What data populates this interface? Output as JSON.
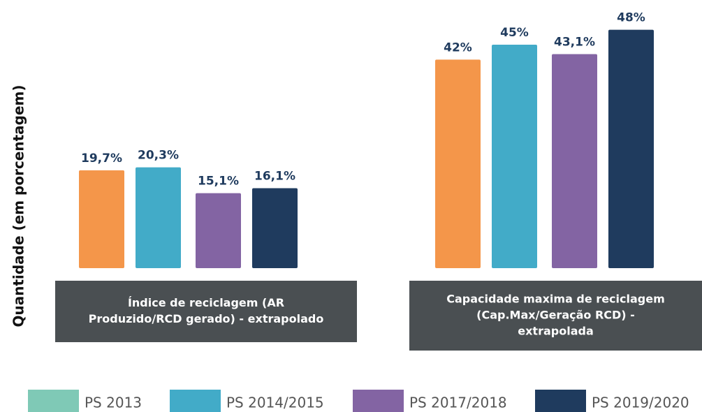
{
  "chart_data": {
    "type": "bar",
    "y_label": "Quantidade (em porcentagem)",
    "categories": [
      [
        "Índice de reciclagem (AR",
        "Produzido/RCD gerado) - extrapolado"
      ],
      [
        "Capacidade maxima de reciclagem",
        "(Cap.Max/Geração RCD) -",
        "extrapolada"
      ]
    ],
    "series": [
      {
        "name": "PS 2013",
        "color": "#f4964a",
        "legend_color": "#7fc9b6",
        "values": [
          19.7,
          42
        ],
        "value_labels": [
          "19,7%",
          "42%"
        ]
      },
      {
        "name": "PS 2014/2015",
        "color": "#42abc8",
        "legend_color": "#42abc8",
        "values": [
          20.3,
          45
        ],
        "value_labels": [
          "20,3%",
          "45%"
        ]
      },
      {
        "name": "PS 2017/2018",
        "color": "#8364a3",
        "legend_color": "#8364a3",
        "values": [
          15.1,
          43.1
        ],
        "value_labels": [
          "15,1%",
          "43,1%"
        ]
      },
      {
        "name": "PS 2019/2020",
        "color": "#1f3b5e",
        "legend_color": "#1f3b5e",
        "values": [
          16.1,
          48
        ],
        "value_labels": [
          "16,1%",
          "48%"
        ]
      }
    ],
    "ylim": [
      0,
      54
    ]
  }
}
